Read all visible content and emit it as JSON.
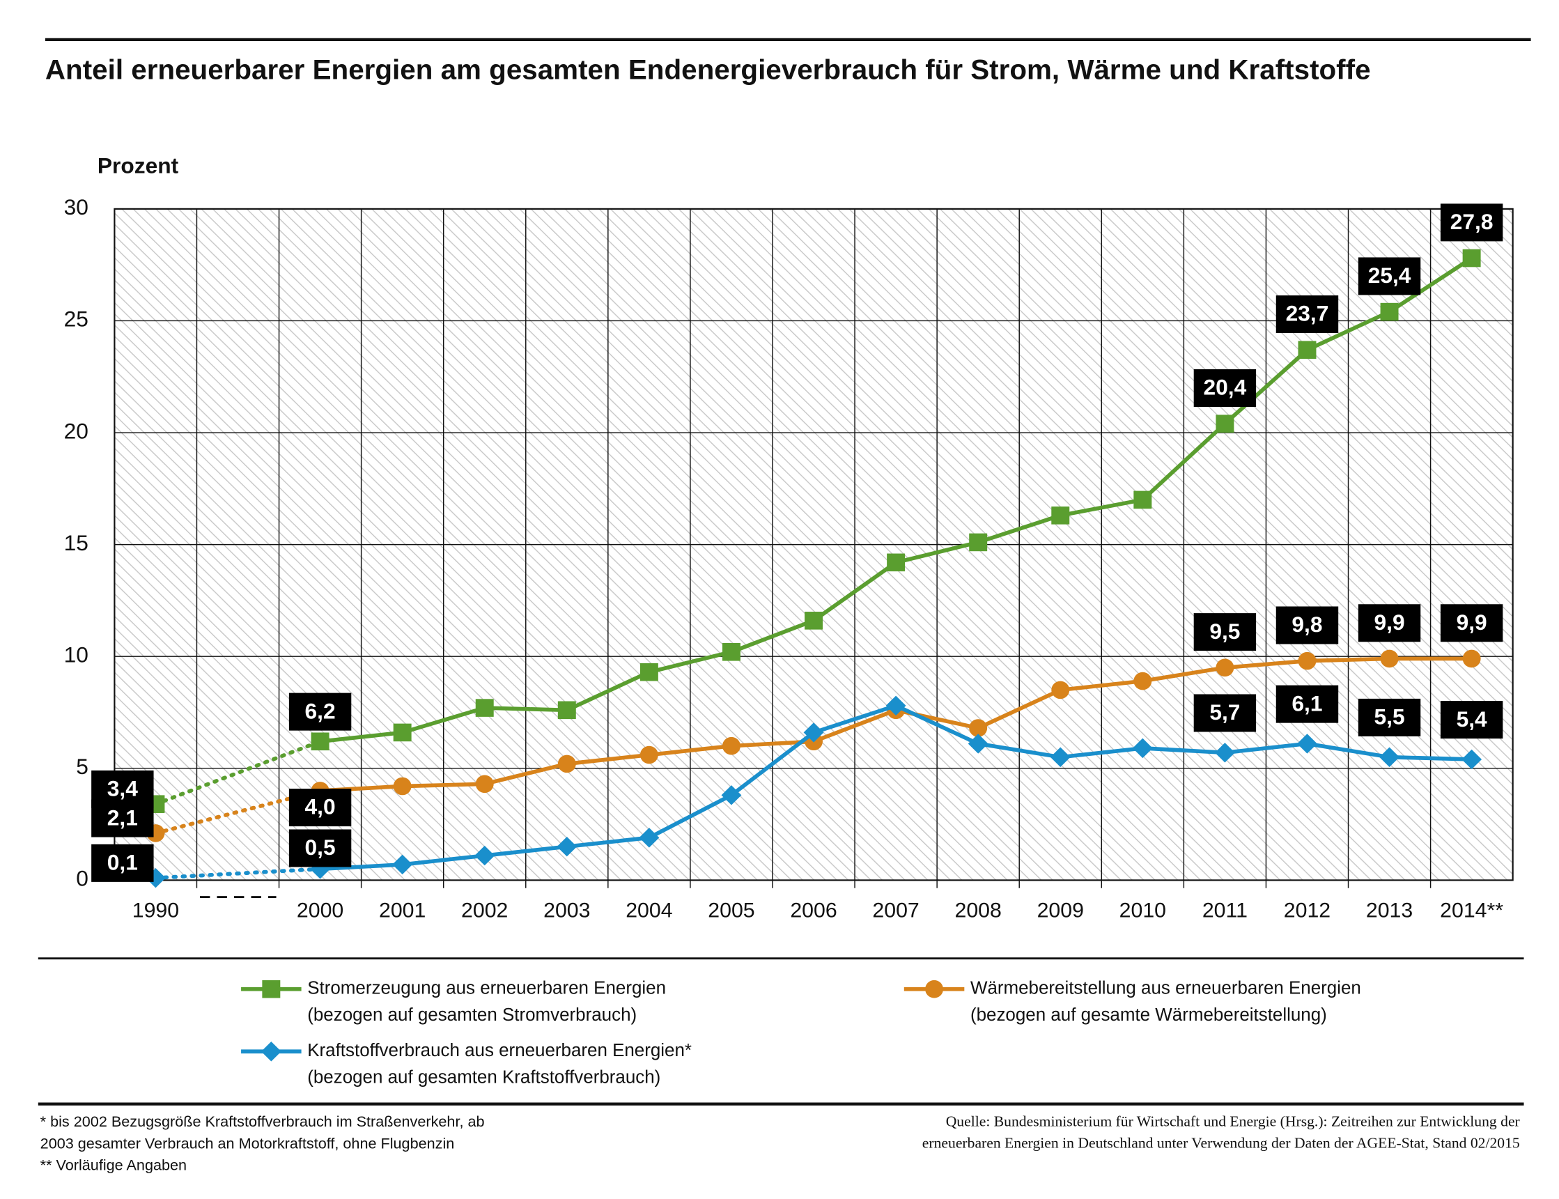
{
  "chart_data": {
    "type": "line",
    "title": "Anteil erneuerbarer Energien am gesamten Endenergieverbrauch für Strom, Wärme und Kraftstoffe",
    "y_label": "Prozent",
    "categories": [
      "1990",
      null,
      "2000",
      "2001",
      "2002",
      "2003",
      "2004",
      "2005",
      "2006",
      "2007",
      "2008",
      "2009",
      "2010",
      "2011",
      "2012",
      "2013",
      "2014**"
    ],
    "ylim": [
      0,
      30
    ],
    "yticks": [
      0,
      5,
      10,
      15,
      20,
      25,
      30
    ],
    "grid": true,
    "series": [
      {
        "name": "Stromerzeugung aus erneuerbaren Energien",
        "legend_note": "(bezogen auf gesamten Stromverbrauch)",
        "color": "#5a9e2f",
        "marker": "square",
        "values": [
          3.4,
          null,
          6.2,
          6.6,
          7.7,
          7.6,
          9.3,
          10.2,
          11.6,
          14.2,
          15.1,
          16.3,
          17.0,
          20.4,
          23.7,
          25.4,
          27.8
        ],
        "value_labels": [
          "3,4",
          null,
          "6,2",
          null,
          null,
          null,
          null,
          null,
          null,
          null,
          null,
          null,
          null,
          "20,4",
          "23,7",
          "25,4",
          "27,8"
        ]
      },
      {
        "name": "Wärmebereitstellung aus erneuerbaren Energien",
        "legend_note": "(bezogen auf gesamte Wärmebereitstellung)",
        "color": "#d8831b",
        "marker": "circle",
        "values": [
          2.1,
          null,
          4.0,
          4.2,
          4.3,
          5.2,
          5.6,
          6.0,
          6.2,
          7.6,
          6.8,
          8.5,
          8.9,
          9.5,
          9.8,
          9.9,
          9.9
        ],
        "value_labels": [
          "2,1",
          null,
          "4,0",
          null,
          null,
          null,
          null,
          null,
          null,
          null,
          null,
          null,
          null,
          "9,5",
          "9,8",
          "9,9",
          "9,9"
        ]
      },
      {
        "name": "Kraftstoffverbrauch aus erneuerbaren Energien*",
        "legend_note": "(bezogen auf gesamten Kraftstoffverbrauch)",
        "color": "#1a8fcc",
        "marker": "diamond",
        "values": [
          0.1,
          null,
          0.5,
          0.7,
          1.1,
          1.5,
          1.9,
          3.8,
          6.6,
          7.8,
          6.1,
          5.5,
          5.9,
          5.7,
          6.1,
          5.5,
          5.4
        ],
        "value_labels": [
          "0,1",
          null,
          "0,5",
          null,
          null,
          null,
          null,
          null,
          null,
          null,
          null,
          null,
          null,
          "5,7",
          "6,1",
          "5,5",
          "5,4"
        ]
      }
    ],
    "footnotes": [
      "* bis 2002 Bezugsgröße Kraftstoffverbrauch im Straßenverkehr, ab",
      "2003 gesamter Verbrauch an Motorkraftstoff, ohne Flugbenzin",
      "** Vorläufige Angaben"
    ],
    "source": [
      "Quelle: Bundesministerium für Wirtschaft und Energie (Hrsg.): Zeitreihen zur Entwicklung der",
      "erneuerbaren Energien in Deutschland unter Verwendung der Daten der AGEE-Stat, Stand 02/2015"
    ]
  }
}
